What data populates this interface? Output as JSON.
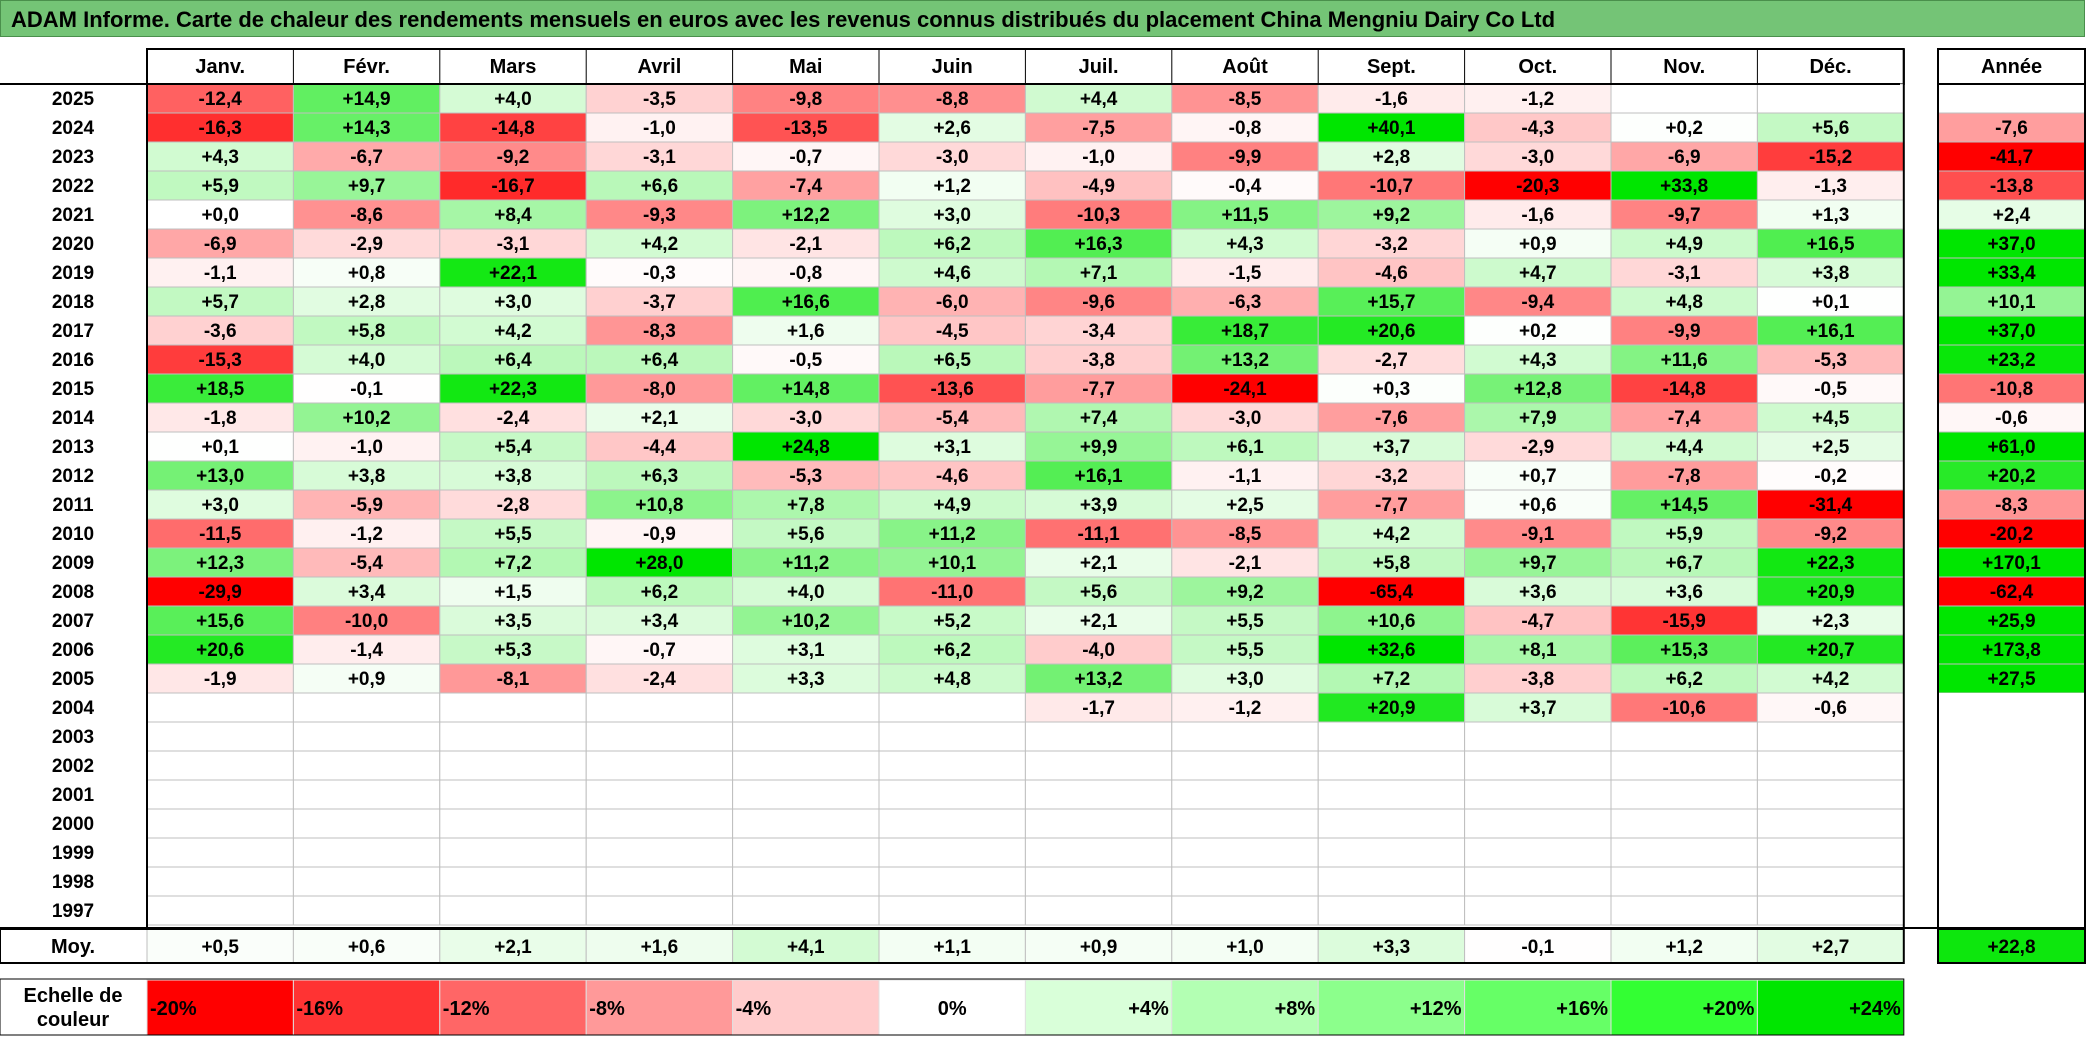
{
  "title": "ADAM Informe. Carte de chaleur des rendements mensuels en euros avec les revenus connus distribués du placement China Mengniu Dairy Co Ltd",
  "chart_data": {
    "type": "heatmap",
    "title": "ADAM Informe. Carte de chaleur des rendements mensuels en euros avec les revenus connus distribués du placement China Mengniu Dairy Co Ltd",
    "months": [
      "Janv.",
      "Févr.",
      "Mars",
      "Avril",
      "Mai",
      "Juin",
      "Juil.",
      "Août",
      "Sept.",
      "Oct.",
      "Nov.",
      "Déc."
    ],
    "year_header": "Année",
    "avg_label": "Moy.",
    "scale_label": "Echelle de couleur",
    "rows": [
      {
        "year": "2025",
        "values": [
          "-12,4",
          "+14,9",
          "+4,0",
          "-3,5",
          "-9,8",
          "-8,8",
          "+4,4",
          "-8,5",
          "-1,6",
          "-1,2",
          "",
          ""
        ],
        "annual": ""
      },
      {
        "year": "2024",
        "values": [
          "-16,3",
          "+14,3",
          "-14,8",
          "-1,0",
          "-13,5",
          "+2,6",
          "-7,5",
          "-0,8",
          "+40,1",
          "-4,3",
          "+0,2",
          "+5,6"
        ],
        "annual": "-7,6"
      },
      {
        "year": "2023",
        "values": [
          "+4,3",
          "-6,7",
          "-9,2",
          "-3,1",
          "-0,7",
          "-3,0",
          "-1,0",
          "-9,9",
          "+2,8",
          "-3,0",
          "-6,9",
          "-15,2"
        ],
        "annual": "-41,7"
      },
      {
        "year": "2022",
        "values": [
          "+5,9",
          "+9,7",
          "-16,7",
          "+6,6",
          "-7,4",
          "+1,2",
          "-4,9",
          "-0,4",
          "-10,7",
          "-20,3",
          "+33,8",
          "-1,3"
        ],
        "annual": "-13,8"
      },
      {
        "year": "2021",
        "values": [
          "+0,0",
          "-8,6",
          "+8,4",
          "-9,3",
          "+12,2",
          "+3,0",
          "-10,3",
          "+11,5",
          "+9,2",
          "-1,6",
          "-9,7",
          "+1,3"
        ],
        "annual": "+2,4"
      },
      {
        "year": "2020",
        "values": [
          "-6,9",
          "-2,9",
          "-3,1",
          "+4,2",
          "-2,1",
          "+6,2",
          "+16,3",
          "+4,3",
          "-3,2",
          "+0,9",
          "+4,9",
          "+16,5"
        ],
        "annual": "+37,0"
      },
      {
        "year": "2019",
        "values": [
          "-1,1",
          "+0,8",
          "+22,1",
          "-0,3",
          "-0,8",
          "+4,6",
          "+7,1",
          "-1,5",
          "-4,6",
          "+4,7",
          "-3,1",
          "+3,8"
        ],
        "annual": "+33,4"
      },
      {
        "year": "2018",
        "values": [
          "+5,7",
          "+2,8",
          "+3,0",
          "-3,7",
          "+16,6",
          "-6,0",
          "-9,6",
          "-6,3",
          "+15,7",
          "-9,4",
          "+4,8",
          "+0,1"
        ],
        "annual": "+10,1"
      },
      {
        "year": "2017",
        "values": [
          "-3,6",
          "+5,8",
          "+4,2",
          "-8,3",
          "+1,6",
          "-4,5",
          "-3,4",
          "+18,7",
          "+20,6",
          "+0,2",
          "-9,9",
          "+16,1"
        ],
        "annual": "+37,0"
      },
      {
        "year": "2016",
        "values": [
          "-15,3",
          "+4,0",
          "+6,4",
          "+6,4",
          "-0,5",
          "+6,5",
          "-3,8",
          "+13,2",
          "-2,7",
          "+4,3",
          "+11,6",
          "-5,3"
        ],
        "annual": "+23,2"
      },
      {
        "year": "2015",
        "values": [
          "+18,5",
          "-0,1",
          "+22,3",
          "-8,0",
          "+14,8",
          "-13,6",
          "-7,7",
          "-24,1",
          "+0,3",
          "+12,8",
          "-14,8",
          "-0,5"
        ],
        "annual": "-10,8"
      },
      {
        "year": "2014",
        "values": [
          "-1,8",
          "+10,2",
          "-2,4",
          "+2,1",
          "-3,0",
          "-5,4",
          "+7,4",
          "-3,0",
          "-7,6",
          "+7,9",
          "-7,4",
          "+4,5"
        ],
        "annual": "-0,6"
      },
      {
        "year": "2013",
        "values": [
          "+0,1",
          "-1,0",
          "+5,4",
          "-4,4",
          "+24,8",
          "+3,1",
          "+9,9",
          "+6,1",
          "+3,7",
          "-2,9",
          "+4,4",
          "+2,5"
        ],
        "annual": "+61,0"
      },
      {
        "year": "2012",
        "values": [
          "+13,0",
          "+3,8",
          "+3,8",
          "+6,3",
          "-5,3",
          "-4,6",
          "+16,1",
          "-1,1",
          "-3,2",
          "+0,7",
          "-7,8",
          "-0,2"
        ],
        "annual": "+20,2"
      },
      {
        "year": "2011",
        "values": [
          "+3,0",
          "-5,9",
          "-2,8",
          "+10,8",
          "+7,8",
          "+4,9",
          "+3,9",
          "+2,5",
          "-7,7",
          "+0,6",
          "+14,5",
          "-31,4"
        ],
        "annual": "-8,3"
      },
      {
        "year": "2010",
        "values": [
          "-11,5",
          "-1,2",
          "+5,5",
          "-0,9",
          "+5,6",
          "+11,2",
          "-11,1",
          "-8,5",
          "+4,2",
          "-9,1",
          "+5,9",
          "-9,2"
        ],
        "annual": "-20,2"
      },
      {
        "year": "2009",
        "values": [
          "+12,3",
          "-5,4",
          "+7,2",
          "+28,0",
          "+11,2",
          "+10,1",
          "+2,1",
          "-2,1",
          "+5,8",
          "+9,7",
          "+6,7",
          "+22,3"
        ],
        "annual": "+170,1"
      },
      {
        "year": "2008",
        "values": [
          "-29,9",
          "+3,4",
          "+1,5",
          "+6,2",
          "+4,0",
          "-11,0",
          "+5,6",
          "+9,2",
          "-65,4",
          "+3,6",
          "+3,6",
          "+20,9"
        ],
        "annual": "-62,4"
      },
      {
        "year": "2007",
        "values": [
          "+15,6",
          "-10,0",
          "+3,5",
          "+3,4",
          "+10,2",
          "+5,2",
          "+2,1",
          "+5,5",
          "+10,6",
          "-4,7",
          "-15,9",
          "+2,3"
        ],
        "annual": "+25,9"
      },
      {
        "year": "2006",
        "values": [
          "+20,6",
          "-1,4",
          "+5,3",
          "-0,7",
          "+3,1",
          "+6,2",
          "-4,0",
          "+5,5",
          "+32,6",
          "+8,1",
          "+15,3",
          "+20,7"
        ],
        "annual": "+173,8"
      },
      {
        "year": "2005",
        "values": [
          "-1,9",
          "+0,9",
          "-8,1",
          "-2,4",
          "+3,3",
          "+4,8",
          "+13,2",
          "+3,0",
          "+7,2",
          "-3,8",
          "+6,2",
          "+4,2"
        ],
        "annual": "+27,5"
      },
      {
        "year": "2004",
        "values": [
          "",
          "",
          "",
          "",
          "",
          "",
          "-1,7",
          "-1,2",
          "+20,9",
          "+3,7",
          "-10,6",
          "-0,6"
        ],
        "annual": ""
      },
      {
        "year": "2003",
        "values": [
          "",
          "",
          "",
          "",
          "",
          "",
          "",
          "",
          "",
          "",
          "",
          ""
        ],
        "annual": ""
      },
      {
        "year": "2002",
        "values": [
          "",
          "",
          "",
          "",
          "",
          "",
          "",
          "",
          "",
          "",
          "",
          ""
        ],
        "annual": ""
      },
      {
        "year": "2001",
        "values": [
          "",
          "",
          "",
          "",
          "",
          "",
          "",
          "",
          "",
          "",
          "",
          ""
        ],
        "annual": ""
      },
      {
        "year": "2000",
        "values": [
          "",
          "",
          "",
          "",
          "",
          "",
          "",
          "",
          "",
          "",
          "",
          ""
        ],
        "annual": ""
      },
      {
        "year": "1999",
        "values": [
          "",
          "",
          "",
          "",
          "",
          "",
          "",
          "",
          "",
          "",
          "",
          ""
        ],
        "annual": ""
      },
      {
        "year": "1998",
        "values": [
          "",
          "",
          "",
          "",
          "",
          "",
          "",
          "",
          "",
          "",
          "",
          ""
        ],
        "annual": ""
      },
      {
        "year": "1997",
        "values": [
          "",
          "",
          "",
          "",
          "",
          "",
          "",
          "",
          "",
          "",
          "",
          ""
        ],
        "annual": ""
      }
    ],
    "averages": [
      "+0,5",
      "+0,6",
      "+2,1",
      "+1,6",
      "+4,1",
      "+1,1",
      "+0,9",
      "+1,0",
      "+3,3",
      "-0,1",
      "+1,2",
      "+2,7"
    ],
    "annual_average": "+22,8",
    "scale": [
      {
        "label": "-20%",
        "value": -20,
        "color": "#ff0000"
      },
      {
        "label": "-16%",
        "value": -16,
        "color": "#ff3333"
      },
      {
        "label": "-12%",
        "value": -12,
        "color": "#ff6666"
      },
      {
        "label": "-8%",
        "value": -8,
        "color": "#ff9999"
      },
      {
        "label": "-4%",
        "value": -4,
        "color": "#ffcccc"
      },
      {
        "label": "0%",
        "value": 0,
        "color": "#ffffff"
      },
      {
        "label": "+4%",
        "value": 4,
        "color": "#d9ffd9"
      },
      {
        "label": "+8%",
        "value": 8,
        "color": "#b3ffb3"
      },
      {
        "label": "+12%",
        "value": 12,
        "color": "#8cff8c"
      },
      {
        "label": "+16%",
        "value": 16,
        "color": "#66ff66"
      },
      {
        "label": "+20%",
        "value": 20,
        "color": "#33ff33"
      },
      {
        "label": "+24%",
        "value": 24,
        "color": "#00e600"
      }
    ]
  }
}
